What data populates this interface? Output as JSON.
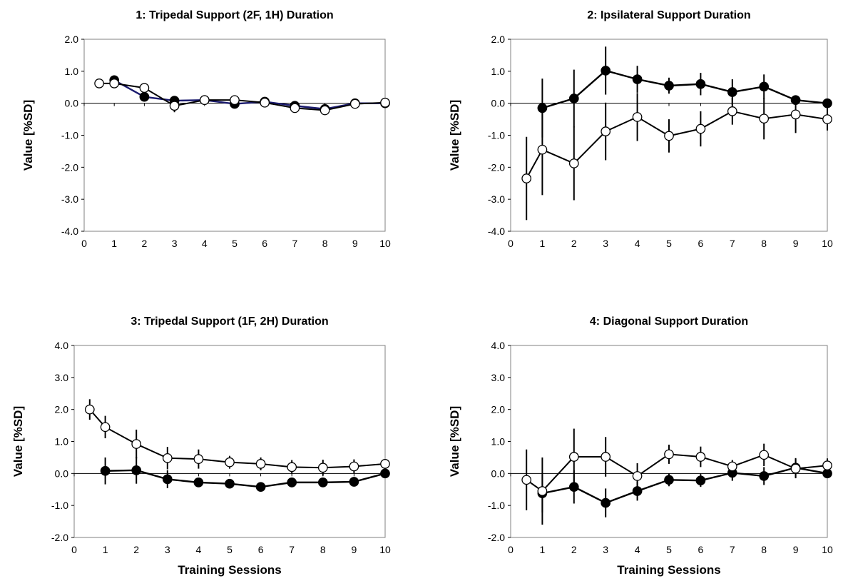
{
  "chart_data": [
    {
      "type": "line",
      "title": "1:  Tripedal Support (2F, 1H) Duration",
      "xlabel": "",
      "ylabel": "Value  [%SD]",
      "xlim": [
        0,
        10
      ],
      "ylim": [
        -4,
        2
      ],
      "xticks": [
        "0",
        "1",
        "2",
        "3",
        "4",
        "5",
        "6",
        "7",
        "8",
        "9",
        "10"
      ],
      "yticks": [
        "2.0",
        "1.0",
        "0.0",
        "-1.0",
        "-2.0",
        "-3.0",
        "-4.0"
      ],
      "grid": false,
      "series": [
        {
          "marker": "filled",
          "line_color": "#1a1a6e",
          "x": [
            1,
            2,
            3,
            4,
            5,
            6,
            7,
            8,
            9,
            10
          ],
          "y": [
            0.72,
            0.2,
            0.08,
            0.1,
            -0.02,
            0.05,
            -0.08,
            -0.18,
            0.0,
            0.0
          ],
          "err": [
            0.15,
            0.12,
            0.1,
            0.12,
            0.06,
            0.08,
            0.08,
            0.1,
            0.06,
            0.0
          ]
        },
        {
          "marker": "open",
          "line_color": "#000000",
          "x": [
            0.5,
            1,
            2,
            3,
            4,
            5,
            6,
            7,
            8,
            9,
            10
          ],
          "y": [
            0.62,
            0.62,
            0.48,
            -0.08,
            0.1,
            0.1,
            0.02,
            -0.15,
            -0.22,
            -0.02,
            0.02
          ],
          "err": [
            0.0,
            0.1,
            0.08,
            0.2,
            0.12,
            0.06,
            0.06,
            0.1,
            0.1,
            0.06,
            0.0
          ]
        }
      ]
    },
    {
      "type": "line",
      "title": "2:  Ipsilateral Support Duration",
      "xlabel": "",
      "ylabel": "Value  [%SD]",
      "xlim": [
        0,
        10
      ],
      "ylim": [
        -4,
        2
      ],
      "xticks": [
        "0",
        "1",
        "2",
        "3",
        "4",
        "5",
        "6",
        "7",
        "8",
        "9",
        "10"
      ],
      "yticks": [
        "2.0",
        "1.0",
        "0.0",
        "-1.0",
        "-2.0",
        "-3.0",
        "-4.0"
      ],
      "grid": false,
      "series": [
        {
          "marker": "filled",
          "line_color": "#000000",
          "x": [
            1,
            2,
            3,
            4,
            5,
            6,
            7,
            8,
            9,
            10
          ],
          "y": [
            -0.15,
            0.15,
            1.02,
            0.75,
            0.55,
            0.6,
            0.35,
            0.52,
            0.1,
            0.0
          ],
          "err": [
            0.92,
            0.9,
            0.75,
            0.42,
            0.25,
            0.35,
            0.4,
            0.38,
            0.15,
            0.0
          ]
        },
        {
          "marker": "open",
          "line_color": "#000000",
          "x": [
            0.5,
            1,
            2,
            3,
            4,
            5,
            6,
            7,
            8,
            9,
            10
          ],
          "y": [
            -2.35,
            -1.45,
            -1.88,
            -0.88,
            -0.43,
            -1.02,
            -0.8,
            -0.25,
            -0.48,
            -0.35,
            -0.5
          ],
          "err": [
            1.3,
            1.42,
            1.15,
            0.9,
            0.75,
            0.52,
            0.55,
            0.42,
            0.65,
            0.58,
            0.35
          ]
        }
      ]
    },
    {
      "type": "line",
      "title": "3:  Tripedal Support (1F, 2H) Duration",
      "xlabel": "Training Sessions",
      "ylabel": "Value  [%SD]",
      "xlim": [
        0,
        10
      ],
      "ylim": [
        -2,
        4
      ],
      "xticks": [
        "0",
        "1",
        "2",
        "3",
        "4",
        "5",
        "6",
        "7",
        "8",
        "9",
        "10"
      ],
      "yticks": [
        "4.0",
        "3.0",
        "2.0",
        "1.0",
        "0.0",
        "-1.0",
        "-2.0"
      ],
      "grid": false,
      "series": [
        {
          "marker": "filled",
          "line_color": "#000000",
          "x": [
            1,
            2,
            3,
            4,
            5,
            6,
            7,
            8,
            9,
            10
          ],
          "y": [
            0.08,
            0.1,
            -0.18,
            -0.28,
            -0.32,
            -0.42,
            -0.28,
            -0.28,
            -0.26,
            0.0
          ],
          "err": [
            0.42,
            0.42,
            0.28,
            0.12,
            0.08,
            0.08,
            0.15,
            0.12,
            0.1,
            0.0
          ]
        },
        {
          "marker": "open",
          "line_color": "#000000",
          "x": [
            0.5,
            1,
            2,
            3,
            4,
            5,
            6,
            7,
            8,
            9,
            10
          ],
          "y": [
            2.0,
            1.45,
            0.92,
            0.48,
            0.45,
            0.35,
            0.3,
            0.2,
            0.18,
            0.22,
            0.3
          ],
          "err": [
            0.32,
            0.35,
            0.45,
            0.35,
            0.3,
            0.2,
            0.2,
            0.22,
            0.25,
            0.22,
            0.15
          ]
        }
      ]
    },
    {
      "type": "line",
      "title": "4:  Diagonal Support Duration",
      "xlabel": "Training Sessions",
      "ylabel": "Value  [%SD]",
      "xlim": [
        0,
        10
      ],
      "ylim": [
        -2,
        4
      ],
      "xticks": [
        "0",
        "1",
        "2",
        "3",
        "4",
        "5",
        "6",
        "7",
        "8",
        "9",
        "10"
      ],
      "yticks": [
        "4.0",
        "3.0",
        "2.0",
        "1.0",
        "0.0",
        "-1.0",
        "-2.0"
      ],
      "grid": false,
      "series": [
        {
          "marker": "filled",
          "line_color": "#000000",
          "x": [
            1,
            2,
            3,
            4,
            5,
            6,
            7,
            8,
            9,
            10
          ],
          "y": [
            -0.62,
            -0.42,
            -0.92,
            -0.55,
            -0.2,
            -0.22,
            0.02,
            -0.08,
            0.18,
            0.0
          ],
          "err": [
            0.6,
            0.52,
            0.45,
            0.3,
            0.2,
            0.2,
            0.25,
            0.28,
            0.3,
            0.0
          ]
        },
        {
          "marker": "open",
          "line_color": "#000000",
          "x": [
            0.5,
            1,
            2,
            3,
            4,
            5,
            6,
            7,
            8,
            9,
            10
          ],
          "y": [
            -0.2,
            -0.55,
            0.52,
            0.52,
            -0.08,
            0.6,
            0.52,
            0.22,
            0.58,
            0.15,
            0.25
          ],
          "err": [
            0.95,
            1.05,
            0.88,
            0.62,
            0.4,
            0.3,
            0.32,
            0.2,
            0.35,
            0.3,
            0.22
          ]
        }
      ]
    }
  ]
}
